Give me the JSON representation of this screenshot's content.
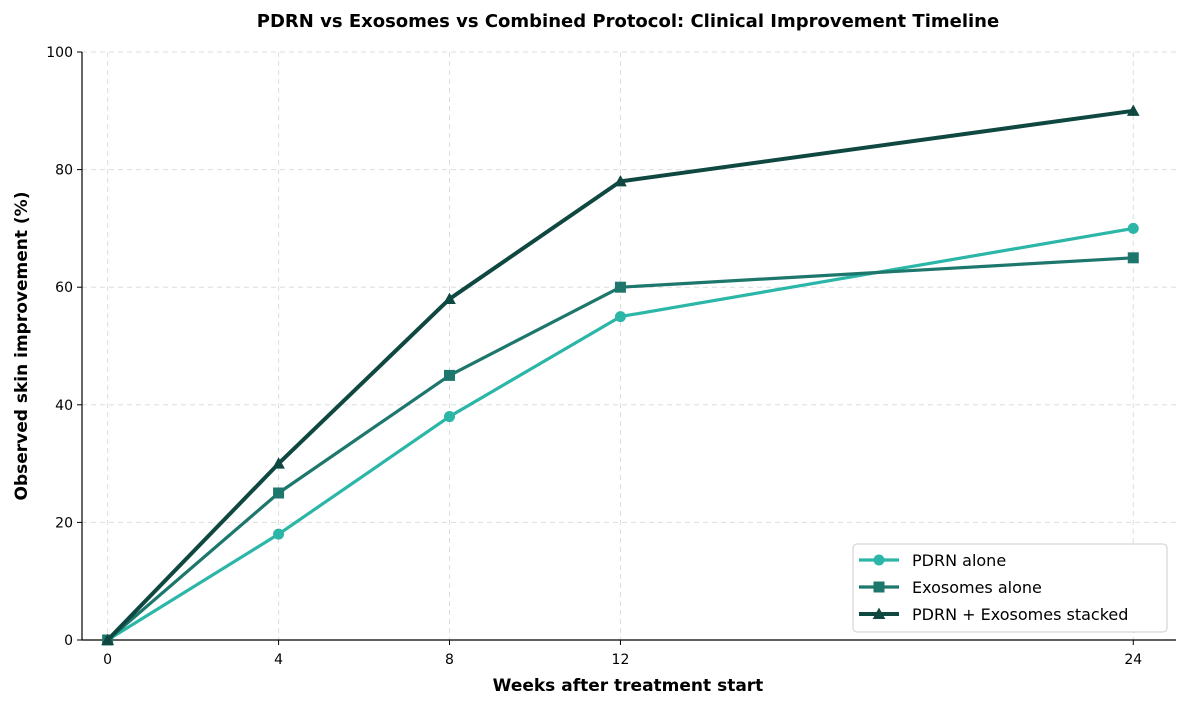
{
  "chart_data": {
    "type": "line",
    "title": "PDRN vs Exosomes vs Combined Protocol: Clinical Improvement Timeline",
    "xlabel": "Weeks after treatment start",
    "ylabel": "Observed skin improvement (%)",
    "x": [
      0,
      4,
      8,
      12,
      24
    ],
    "x_ticks": [
      "0",
      "4",
      "8",
      "12",
      "24"
    ],
    "y_ticks": [
      "0",
      "20",
      "40",
      "60",
      "80",
      "100"
    ],
    "xlim": [
      -0.6,
      25
    ],
    "ylim": [
      0,
      100
    ],
    "grid": true,
    "legend_position": "lower-right",
    "series": [
      {
        "name": "PDRN alone",
        "values": [
          0,
          18,
          38,
          55,
          70
        ],
        "color": "#2bb6a8",
        "marker": "circle"
      },
      {
        "name": "Exosomes alone",
        "values": [
          0,
          25,
          45,
          60,
          65
        ],
        "color": "#1d776d",
        "marker": "square"
      },
      {
        "name": "PDRN + Exosomes stacked",
        "values": [
          0,
          30,
          58,
          78,
          90
        ],
        "color": "#0f4841",
        "marker": "triangle"
      }
    ]
  }
}
